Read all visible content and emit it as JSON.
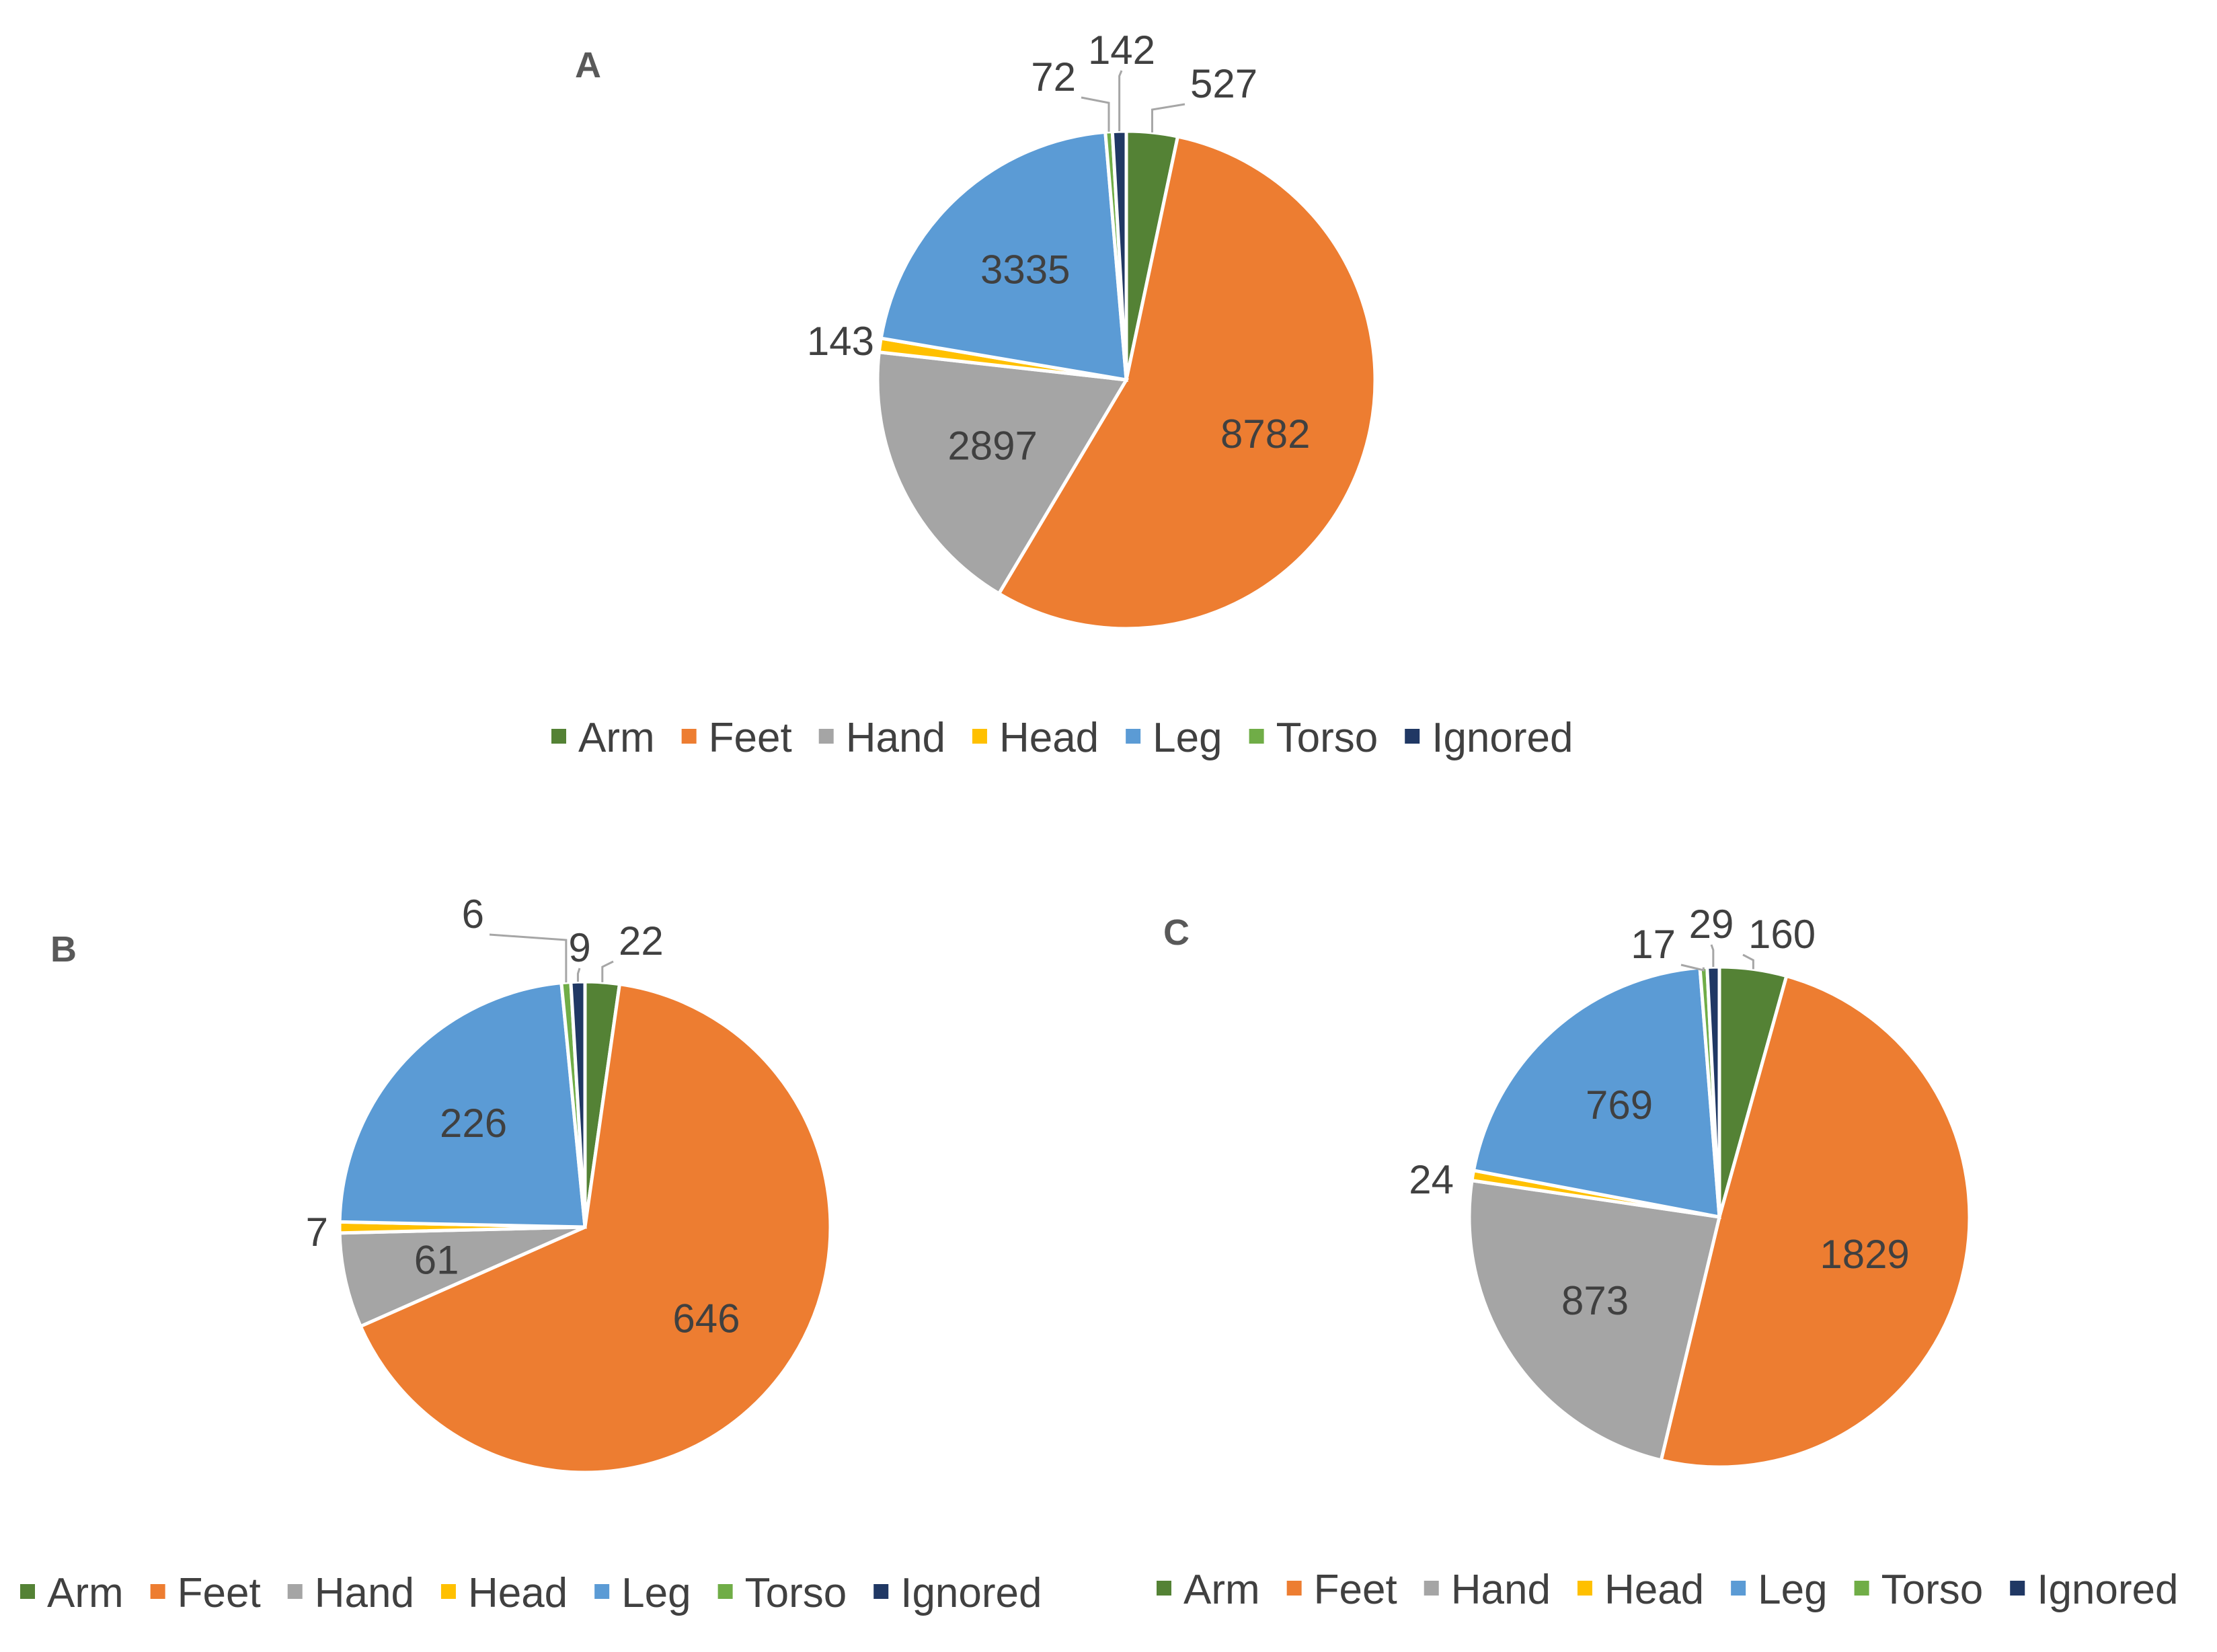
{
  "colors": {
    "Arm": "#548235",
    "Feet": "#ED7D31",
    "Hand": "#A5A5A5",
    "Head": "#FFC000",
    "Leg": "#5B9BD5",
    "Torso": "#70AD47",
    "Ignored": "#203864"
  },
  "chart_data": [
    {
      "type": "pie",
      "panel": "A",
      "title": "A",
      "categories": [
        "Arm",
        "Feet",
        "Hand",
        "Head",
        "Leg",
        "Torso",
        "Ignored"
      ],
      "values": [
        527,
        8782,
        2897,
        143,
        3335,
        72,
        142
      ],
      "labels": [
        "527",
        "8782",
        "2897",
        "143",
        "3335",
        "72",
        "142"
      ],
      "legend": [
        "Arm",
        "Feet",
        "Hand",
        "Head",
        "Leg",
        "Torso",
        "Ignored"
      ],
      "legend_position": "bottom"
    },
    {
      "type": "pie",
      "panel": "B",
      "title": "B",
      "categories": [
        "Arm",
        "Feet",
        "Hand",
        "Head",
        "Leg",
        "Torso",
        "Ignored"
      ],
      "values": [
        22,
        646,
        61,
        7,
        226,
        6,
        9
      ],
      "labels": [
        "22",
        "646",
        "61",
        "7",
        "226",
        "6",
        "9"
      ],
      "legend": [
        "Arm",
        "Feet",
        "Hand",
        "Head",
        "Leg",
        "Torso",
        "Ignored"
      ],
      "legend_position": "bottom"
    },
    {
      "type": "pie",
      "panel": "C",
      "title": "C",
      "categories": [
        "Arm",
        "Feet",
        "Hand",
        "Head",
        "Leg",
        "Torso",
        "Ignored"
      ],
      "values": [
        160,
        1829,
        873,
        24,
        769,
        17,
        29
      ],
      "labels": [
        "160",
        "1829",
        "873",
        "24",
        "769",
        "17",
        "29"
      ],
      "legend": [
        "Arm",
        "Feet",
        "Hand",
        "Head",
        "Leg",
        "Torso",
        "Ignored"
      ],
      "legend_position": "bottom"
    }
  ]
}
